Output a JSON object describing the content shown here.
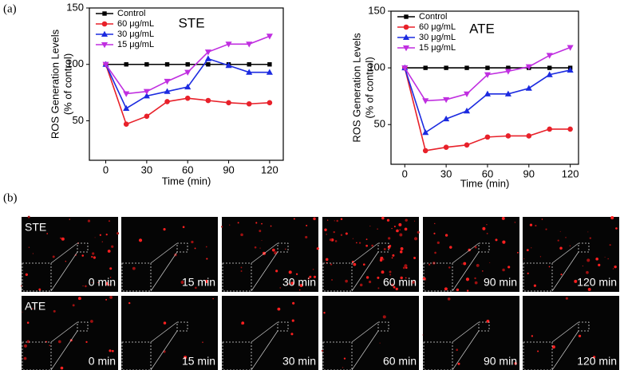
{
  "panel_labels": [
    "(a)",
    "(b)"
  ],
  "chart_data": [
    {
      "type": "line",
      "title": "STE",
      "x_label": "Time (min)",
      "y_label": [
        "ROS Generation Levels",
        "(% of control)"
      ],
      "x": [
        0,
        15,
        30,
        45,
        60,
        75,
        90,
        105,
        120
      ],
      "xlim": [
        -12,
        130
      ],
      "xticks": [
        0,
        30,
        60,
        90,
        120
      ],
      "ylim": [
        15,
        150
      ],
      "yticks": [
        50,
        100,
        150
      ],
      "legend": "upper left",
      "series": [
        {
          "name": "Control",
          "color": "#000000",
          "marker": "square",
          "values": [
            100,
            100,
            100,
            100,
            100,
            100,
            100,
            100,
            100
          ]
        },
        {
          "name": "60 μg/mL",
          "color": "#e8212a",
          "marker": "circle",
          "values": [
            100,
            47,
            54,
            67,
            70,
            68,
            66,
            65,
            66
          ]
        },
        {
          "name": "30 μg/mL",
          "color": "#1c2be0",
          "marker": "triangle-up",
          "values": [
            100,
            61,
            72,
            76,
            80,
            105,
            99,
            93,
            93
          ]
        },
        {
          "name": "15 μg/mL",
          "color": "#c02fe0",
          "marker": "triangle-down",
          "values": [
            100,
            74,
            76,
            85,
            93,
            111,
            118,
            118,
            125
          ]
        }
      ]
    },
    {
      "type": "line",
      "title": "ATE",
      "x_label": "Time (min)",
      "y_label": [
        "ROS Generation Levels",
        "(% of control)"
      ],
      "x": [
        0,
        15,
        30,
        45,
        60,
        75,
        90,
        105,
        120
      ],
      "xlim": [
        -10,
        126
      ],
      "xticks": [
        0,
        30,
        60,
        90,
        120
      ],
      "ylim": [
        15,
        150
      ],
      "yticks": [
        50,
        100,
        150
      ],
      "legend": "upper left",
      "series": [
        {
          "name": "Control",
          "color": "#000000",
          "marker": "square",
          "values": [
            100,
            100,
            100,
            100,
            100,
            100,
            100,
            100,
            100
          ]
        },
        {
          "name": "60 μg/mL",
          "color": "#e8212a",
          "marker": "circle",
          "values": [
            100,
            27,
            30,
            32,
            39,
            40,
            40,
            46,
            46
          ]
        },
        {
          "name": "30 μg/mL",
          "color": "#1c2be0",
          "marker": "triangle-up",
          "values": [
            100,
            43,
            55,
            62,
            77,
            77,
            82,
            94,
            98
          ]
        },
        {
          "name": "15 μg/mL",
          "color": "#c02fe0",
          "marker": "triangle-down",
          "values": [
            100,
            71,
            72,
            77,
            94,
            97,
            101,
            111,
            118
          ]
        }
      ]
    }
  ],
  "images": {
    "rows": [
      {
        "label": "STE",
        "times": [
          "0 min",
          "15 min",
          "30 min",
          "60 min",
          "90 min",
          "120 min"
        ]
      },
      {
        "label": "ATE",
        "times": [
          "0 min",
          "15 min",
          "30 min",
          "60 min",
          "90 min",
          "120 min"
        ]
      }
    ]
  }
}
